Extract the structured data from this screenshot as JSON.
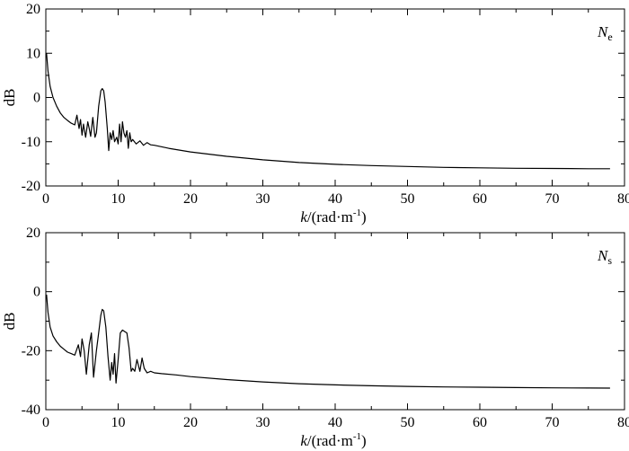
{
  "chart_data": [
    {
      "type": "line",
      "annotation": {
        "main": "N",
        "sub": "e"
      },
      "xlabel": {
        "italic": "k",
        "rest": "/(rad·m",
        "sup": "-1",
        "close": ")"
      },
      "ylabel": "dB",
      "xlim": [
        0,
        80
      ],
      "ylim": [
        -20,
        20
      ],
      "x_ticks": [
        "0",
        "10",
        "20",
        "30",
        "40",
        "50",
        "60",
        "70",
        "80"
      ],
      "y_ticks": [
        "20",
        "10",
        "0",
        "-10",
        "-20"
      ],
      "grid": false,
      "series": [
        {
          "x": [
            0.1,
            0.3,
            0.6,
            1,
            1.5,
            2,
            2.5,
            3,
            3.5,
            4,
            4.3,
            4.6,
            4.8,
            5,
            5.2,
            5.5,
            5.8,
            6,
            6.2,
            6.5,
            6.8,
            7,
            7.3,
            7.6,
            7.8,
            8,
            8.2,
            8.5,
            8.7,
            8.9,
            9.1,
            9.3,
            9.5,
            9.8,
            10,
            10.2,
            10.4,
            10.6,
            10.8,
            11,
            11.2,
            11.4,
            11.6,
            11.8,
            12,
            12.5,
            13,
            13.5,
            14,
            14.5,
            15,
            17,
            20,
            25,
            30,
            35,
            40,
            45,
            50,
            55,
            60,
            65,
            70,
            75,
            78
          ],
          "y": [
            10,
            6,
            2.5,
            0,
            -2,
            -3.5,
            -4.5,
            -5.2,
            -5.8,
            -6.2,
            -4,
            -7,
            -5,
            -8.5,
            -6,
            -9,
            -5.5,
            -7,
            -8.8,
            -4.5,
            -9,
            -8,
            -2,
            1.5,
            2,
            1.5,
            -1,
            -7,
            -12,
            -8,
            -9.5,
            -7.5,
            -10,
            -9,
            -10.5,
            -6,
            -10,
            -5.5,
            -8,
            -9,
            -7.5,
            -11.5,
            -8,
            -10,
            -9.5,
            -10.5,
            -9.8,
            -10.8,
            -10.2,
            -10.7,
            -10.8,
            -11.5,
            -12.3,
            -13.3,
            -14.1,
            -14.7,
            -15.1,
            -15.4,
            -15.6,
            -15.8,
            -15.9,
            -16.0,
            -16.05,
            -16.1,
            -16.1
          ]
        }
      ]
    },
    {
      "type": "line",
      "annotation": {
        "main": "N",
        "sub": "s"
      },
      "xlabel": {
        "italic": "k",
        "rest": "/(rad·m",
        "sup": "-1",
        "close": ")"
      },
      "ylabel": "dB",
      "xlim": [
        0,
        80
      ],
      "ylim": [
        -40,
        20
      ],
      "x_ticks": [
        "0",
        "10",
        "20",
        "30",
        "40",
        "50",
        "60",
        "70",
        "80"
      ],
      "y_ticks": [
        "20",
        "0",
        "-20",
        "-40"
      ],
      "grid": false,
      "series": [
        {
          "x": [
            0.1,
            0.3,
            0.6,
            1,
            1.5,
            2,
            2.5,
            3,
            3.5,
            4,
            4.5,
            4.8,
            5,
            5.3,
            5.6,
            6,
            6.3,
            6.6,
            7,
            7.3,
            7.6,
            7.8,
            8,
            8.3,
            8.6,
            8.9,
            9.1,
            9.3,
            9.5,
            9.7,
            10,
            10.3,
            10.6,
            10.9,
            11.2,
            11.5,
            11.8,
            12,
            12.3,
            12.6,
            13,
            13.3,
            13.6,
            14,
            14.5,
            15,
            16,
            18,
            20,
            25,
            30,
            35,
            40,
            45,
            50,
            55,
            60,
            65,
            70,
            75,
            78
          ],
          "y": [
            -1,
            -7,
            -12,
            -15,
            -17,
            -18.5,
            -19.5,
            -20.5,
            -21,
            -21.5,
            -18,
            -22,
            -16,
            -20,
            -28,
            -18,
            -14,
            -29,
            -20,
            -14,
            -8,
            -6,
            -6.5,
            -12,
            -22,
            -30,
            -24,
            -28,
            -21,
            -31,
            -23,
            -14,
            -13,
            -13.5,
            -14,
            -19,
            -27,
            -26,
            -27,
            -23,
            -27,
            -22.5,
            -26,
            -27.5,
            -27,
            -27.5,
            -27.8,
            -28.2,
            -28.8,
            -29.8,
            -30.6,
            -31.2,
            -31.6,
            -31.9,
            -32.1,
            -32.3,
            -32.4,
            -32.5,
            -32.6,
            -32.65,
            -32.7
          ]
        }
      ]
    }
  ]
}
